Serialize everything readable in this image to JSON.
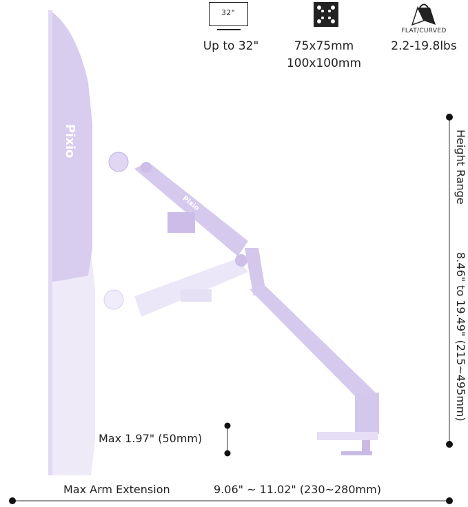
{
  "specs": {
    "screen": {
      "icon": "monitor-size-icon",
      "icon_label": "32\"",
      "text": "Up to 32\""
    },
    "vesa": {
      "icon": "vesa-pattern-icon",
      "line1": "75x75mm",
      "line2": "100x100mm"
    },
    "weight": {
      "icon": "weight-icon",
      "sublabel": "FLAT/CURVED",
      "text": "2.2-19.8lbs"
    }
  },
  "dimensions": {
    "height_label": "Height Range",
    "height_value": "8.46\" to 19.49\" (215~495mm)",
    "tilt_value": "Max 1.97\" (50mm)",
    "extension_label": "Max Arm Extension",
    "extension_value": "9.06\" ~ 11.02\" (230~280mm)"
  },
  "brand": "Pixio",
  "colors": {
    "arm": "#d9cdf0",
    "arm_shadow": "#bfb0e0",
    "ghost": "#ebe6f7",
    "line": "#777777",
    "dot": "#111111"
  }
}
